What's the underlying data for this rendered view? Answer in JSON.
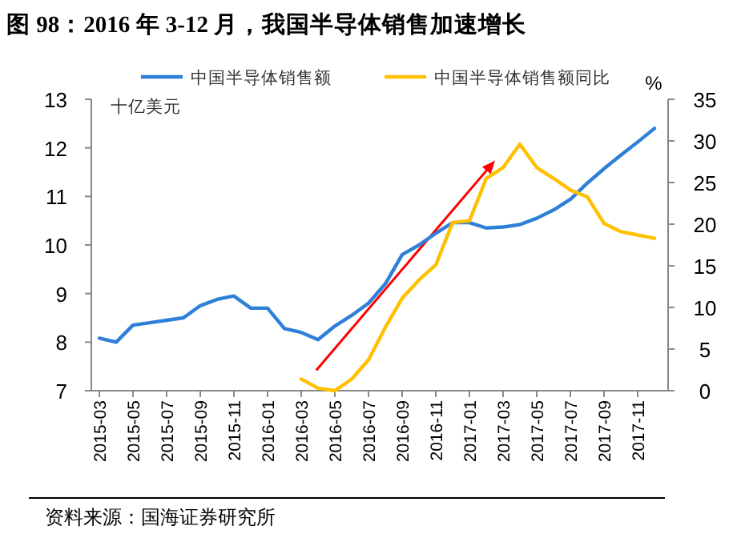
{
  "chart_data": {
    "type": "line",
    "title": "图 98：2016 年 3-12 月，我国半导体销售加速增长",
    "categories": [
      "2015-03",
      null,
      "2015-05",
      null,
      "2015-07",
      null,
      "2015-09",
      null,
      "2015-11",
      null,
      "2016-01",
      null,
      "2016-03",
      null,
      "2016-05",
      null,
      "2016-07",
      null,
      "2016-09",
      null,
      "2016-11",
      null,
      "2017-01",
      null,
      "2017-03",
      null,
      "2017-05",
      null,
      "2017-07",
      null,
      "2017-09",
      null,
      "2017-11",
      null
    ],
    "series": [
      {
        "name": "中国半导体销售额",
        "color": "#2e7fd8",
        "values": [
          8.08,
          8.0,
          8.35,
          8.4,
          8.45,
          8.5,
          8.75,
          8.88,
          8.95,
          8.7,
          8.7,
          8.28,
          8.2,
          8.05,
          8.33,
          8.55,
          8.8,
          9.2,
          9.8,
          10.0,
          10.24,
          10.46,
          10.46,
          10.35,
          10.37,
          10.42,
          10.55,
          10.72,
          10.94,
          11.27,
          11.57,
          11.85,
          12.12,
          12.4
        ]
      },
      {
        "name": "中国半导体销售额同比",
        "color": "#ffc000",
        "axis": "y2",
        "values": [
          null,
          null,
          null,
          null,
          null,
          null,
          null,
          null,
          null,
          null,
          null,
          null,
          1.4,
          0.3,
          0,
          1.4,
          3.7,
          7.6,
          11.1,
          13.3,
          15.1,
          20.2,
          20.4,
          25.5,
          26.8,
          29.6,
          26.8,
          25.5,
          24.1,
          23.3,
          20.1,
          19.1,
          18.7,
          18.3
        ]
      }
    ],
    "ylabel": "十亿美元",
    "y2label": "%",
    "ylim": [
      7,
      13
    ],
    "yticks": [
      7,
      8,
      9,
      10,
      11,
      12,
      13
    ],
    "y2lim": [
      0,
      35
    ],
    "y2ticks": [
      0,
      5,
      10,
      15,
      20,
      25,
      30,
      35
    ],
    "legend": "top",
    "grid": false,
    "marker": "none",
    "line_style": "solid",
    "annotations": [
      "资料来源：国海证券研究所"
    ]
  }
}
